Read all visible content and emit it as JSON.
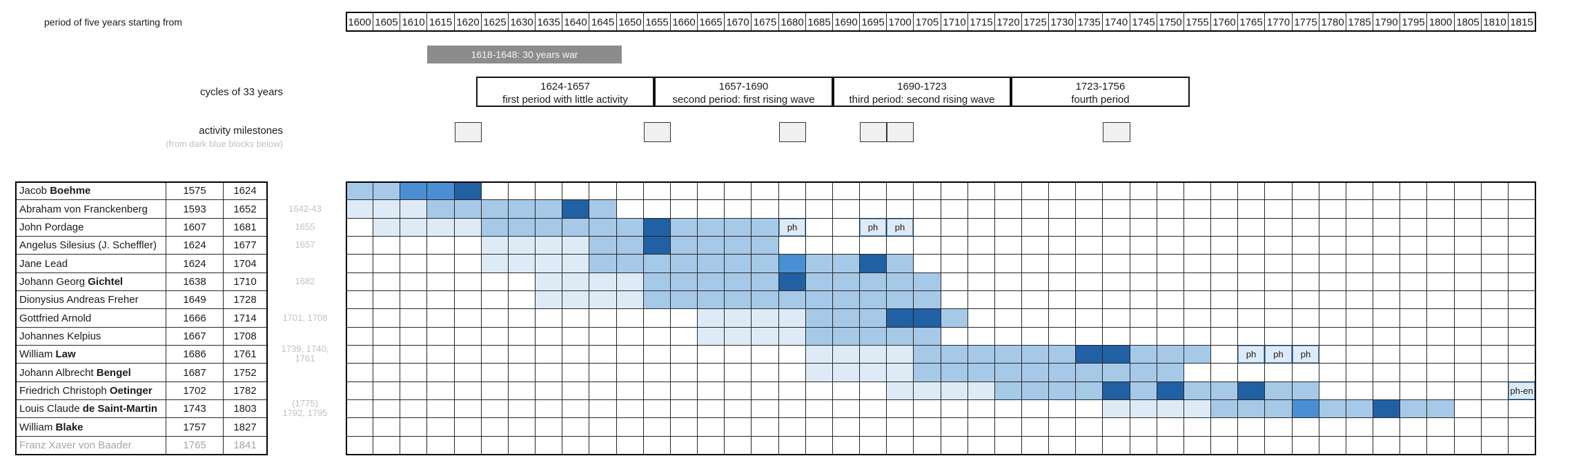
{
  "labels": {
    "period_axis": "period of five years starting from",
    "cycles_label": "cycles of 33 years",
    "milestones_label": "activity milestones",
    "milestones_sublabel": "(from dark blue blocks below)"
  },
  "colors": {
    "war_bar_bg": "#8c8c8c",
    "milestone_fill": "#f0f0f0",
    "annotation_gray": "#c0c0c0",
    "inactive_person_gray": "#a6a6a6",
    "grid_line": "#262626"
  },
  "chart_data": {
    "type": "gantt-heatmap-timeline",
    "x_axis": {
      "label": "period of five years starting from",
      "start": 1600,
      "end": 1815,
      "step": 5,
      "ticks": [
        1600,
        1605,
        1610,
        1615,
        1620,
        1625,
        1630,
        1635,
        1640,
        1645,
        1650,
        1655,
        1660,
        1665,
        1670,
        1675,
        1680,
        1685,
        1690,
        1695,
        1700,
        1705,
        1710,
        1715,
        1720,
        1725,
        1730,
        1735,
        1740,
        1745,
        1750,
        1755,
        1760,
        1765,
        1770,
        1775,
        1780,
        1785,
        1790,
        1795,
        1800,
        1805,
        1810,
        1815
      ]
    },
    "war_bar": {
      "label": "1618-1648: 30 years war",
      "span": [
        1615,
        1651
      ]
    },
    "cycles": [
      {
        "range": "1624-1657",
        "desc": "first period with little activity",
        "from": 1624,
        "to": 1657
      },
      {
        "range": "1657-1690",
        "desc": "second period: first rising wave",
        "from": 1657,
        "to": 1690
      },
      {
        "range": "1690-1723",
        "desc": "third period: second rising wave",
        "from": 1690,
        "to": 1723
      },
      {
        "range": "1723-1756",
        "desc": "fourth period",
        "from": 1723,
        "to": 1756
      }
    ],
    "milestones": {
      "years": [
        1620,
        1655,
        1680,
        1695,
        1700,
        1740
      ]
    },
    "shade_colors": {
      "VL": "#deebf7",
      "M": "#a6c9e8",
      "B": "#4a8fd3",
      "D": "#2160a3"
    },
    "rows": [
      {
        "first": "Jacob ",
        "bold": "Boehme",
        "birth": "1575",
        "death": "1624",
        "gray": false,
        "note_lines": [],
        "spans": [
          [
            1600,
            1605,
            "M"
          ],
          [
            1610,
            1615,
            "B"
          ],
          [
            1620,
            1620,
            "D"
          ]
        ],
        "markers": []
      },
      {
        "first": "Abraham von Franckenberg",
        "bold": "",
        "birth": "1593",
        "death": "1652",
        "gray": false,
        "note_lines": [
          "1642-43"
        ],
        "spans": [
          [
            1600,
            1610,
            "VL"
          ],
          [
            1615,
            1635,
            "M"
          ],
          [
            1640,
            1640,
            "D"
          ],
          [
            1645,
            1645,
            "M"
          ]
        ],
        "markers": []
      },
      {
        "first": "John Pordage",
        "bold": "",
        "birth": "1607",
        "death": "1681",
        "gray": false,
        "note_lines": [
          "1655"
        ],
        "spans": [
          [
            1605,
            1620,
            "VL"
          ],
          [
            1625,
            1650,
            "M"
          ],
          [
            1655,
            1655,
            "D"
          ],
          [
            1660,
            1675,
            "M"
          ]
        ],
        "markers": [
          {
            "year": 1680,
            "label": "ph"
          },
          {
            "year": 1695,
            "label": "ph"
          },
          {
            "year": 1700,
            "label": "ph"
          }
        ]
      },
      {
        "first": "Angelus Silesius (J. Scheffler)",
        "bold": "",
        "birth": "1624",
        "death": "1677",
        "gray": false,
        "note_lines": [
          "1657"
        ],
        "spans": [
          [
            1625,
            1640,
            "VL"
          ],
          [
            1645,
            1650,
            "M"
          ],
          [
            1655,
            1655,
            "D"
          ],
          [
            1660,
            1675,
            "M"
          ]
        ],
        "markers": []
      },
      {
        "first": "Jane Lead",
        "bold": "",
        "birth": "1624",
        "death": "1704",
        "gray": false,
        "note_lines": [],
        "spans": [
          [
            1625,
            1640,
            "VL"
          ],
          [
            1645,
            1675,
            "M"
          ],
          [
            1680,
            1680,
            "B"
          ],
          [
            1685,
            1690,
            "M"
          ],
          [
            1695,
            1695,
            "D"
          ],
          [
            1700,
            1700,
            "M"
          ]
        ],
        "markers": []
      },
      {
        "first": "Johann Georg ",
        "bold": "Gichtel",
        "birth": "1638",
        "death": "1710",
        "gray": false,
        "note_lines": [
          "1682"
        ],
        "spans": [
          [
            1635,
            1650,
            "VL"
          ],
          [
            1655,
            1675,
            "M"
          ],
          [
            1680,
            1680,
            "D"
          ],
          [
            1685,
            1705,
            "M"
          ]
        ],
        "markers": []
      },
      {
        "first": "Dionysius Andreas Freher",
        "bold": "",
        "birth": "1649",
        "death": "1728",
        "gray": false,
        "note_lines": [],
        "spans": [
          [
            1635,
            1650,
            "VL"
          ],
          [
            1655,
            1705,
            "M"
          ]
        ],
        "markers": []
      },
      {
        "first": "Gottfried Arnold",
        "bold": "",
        "birth": "1666",
        "death": "1714",
        "gray": false,
        "note_lines": [
          "1701, 1708"
        ],
        "spans": [
          [
            1665,
            1680,
            "VL"
          ],
          [
            1685,
            1695,
            "M"
          ],
          [
            1700,
            1705,
            "D"
          ],
          [
            1710,
            1710,
            "M"
          ]
        ],
        "markers": []
      },
      {
        "first": "Johannes Kelpius",
        "bold": "",
        "birth": "1667",
        "death": "1708",
        "gray": false,
        "note_lines": [],
        "spans": [
          [
            1665,
            1680,
            "VL"
          ],
          [
            1685,
            1705,
            "M"
          ]
        ],
        "markers": []
      },
      {
        "first": "William ",
        "bold": "Law",
        "birth": "1686",
        "death": "1761",
        "gray": false,
        "note_lines": [
          "1739, 1740,",
          "1761"
        ],
        "spans": [
          [
            1685,
            1700,
            "VL"
          ],
          [
            1705,
            1730,
            "M"
          ],
          [
            1735,
            1740,
            "D"
          ],
          [
            1745,
            1755,
            "M"
          ]
        ],
        "markers": [
          {
            "year": 1765,
            "label": "ph"
          },
          {
            "year": 1770,
            "label": "ph"
          },
          {
            "year": 1775,
            "label": "ph"
          }
        ]
      },
      {
        "first": "Johann Albrecht ",
        "bold": "Bengel",
        "birth": "1687",
        "death": "1752",
        "gray": false,
        "note_lines": [],
        "spans": [
          [
            1685,
            1700,
            "VL"
          ],
          [
            1705,
            1750,
            "M"
          ]
        ],
        "markers": []
      },
      {
        "first": "Friedrich Christoph ",
        "bold": "Oetinger",
        "birth": "1702",
        "death": "1782",
        "gray": false,
        "note_lines": [],
        "spans": [
          [
            1700,
            1715,
            "VL"
          ],
          [
            1720,
            1735,
            "M"
          ],
          [
            1740,
            1740,
            "D"
          ],
          [
            1745,
            1745,
            "M"
          ],
          [
            1750,
            1750,
            "D"
          ],
          [
            1755,
            1760,
            "M"
          ],
          [
            1765,
            1765,
            "D"
          ],
          [
            1770,
            1775,
            "M"
          ]
        ],
        "markers": [
          {
            "year": 1815,
            "label": "ph-en"
          }
        ]
      },
      {
        "first": "Louis Claude ",
        "bold": "de Saint-Martin",
        "birth": "1743",
        "death": "1803",
        "gray": false,
        "note_lines": [
          "(1775)",
          "1792, 1795"
        ],
        "spans": [
          [
            1740,
            1755,
            "VL"
          ],
          [
            1760,
            1770,
            "M"
          ],
          [
            1775,
            1775,
            "B"
          ],
          [
            1780,
            1785,
            "M"
          ],
          [
            1790,
            1790,
            "D"
          ],
          [
            1795,
            1800,
            "M"
          ]
        ],
        "markers": []
      },
      {
        "first": "William ",
        "bold": "Blake",
        "birth": "1757",
        "death": "1827",
        "gray": false,
        "note_lines": [],
        "spans": [],
        "markers": []
      },
      {
        "first": "Franz Xaver von Baader",
        "bold": "",
        "birth": "1765",
        "death": "1841",
        "gray": true,
        "note_lines": [],
        "spans": [],
        "markers": []
      }
    ]
  }
}
